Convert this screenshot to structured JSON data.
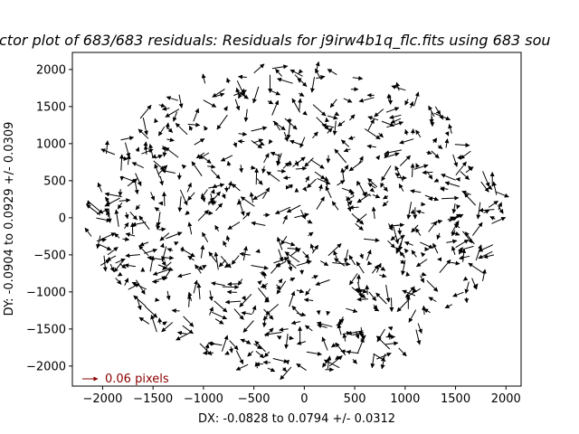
{
  "chart_data": {
    "type": "quiver",
    "title": "ctor plot of 683/683 residuals:  Residuals for j9irw4b1q_flc.fits using 683 sou",
    "xlabel": "DX: -0.0828 to 0.0794 +/- 0.0312",
    "ylabel": "DY: -0.0904 to 0.0929 +/- 0.0309",
    "xlim": [
      -2300,
      2150
    ],
    "ylim": [
      -2270,
      2230
    ],
    "xticks": [
      -2000,
      -1500,
      -1000,
      -500,
      0,
      500,
      1000,
      1500,
      2000
    ],
    "yticks": [
      -2000,
      -1500,
      -1000,
      -500,
      0,
      500,
      1000,
      1500,
      2000
    ],
    "grid": false,
    "quiver_key": {
      "label": "0.06 pixels",
      "color": "#8b0000"
    },
    "vector_count": 683,
    "vectors_sample": [
      {
        "x": -2150,
        "y": 230,
        "dx": 0.06,
        "dy": -0.05
      },
      {
        "x": -1950,
        "y": -500,
        "dx": 0.04,
        "dy": 0.03
      },
      {
        "x": -1820,
        "y": 1050,
        "dx": 0.05,
        "dy": 0.01
      },
      {
        "x": -1430,
        "y": 80,
        "dx": -0.01,
        "dy": -0.07
      },
      {
        "x": -1200,
        "y": -1330,
        "dx": 0.04,
        "dy": -0.04
      },
      {
        "x": -1100,
        "y": 1300,
        "dx": 0.02,
        "dy": 0.05
      },
      {
        "x": -870,
        "y": -600,
        "dx": -0.03,
        "dy": 0.04
      },
      {
        "x": -700,
        "y": 1650,
        "dx": 0.05,
        "dy": 0.02
      },
      {
        "x": -500,
        "y": -1700,
        "dx": 0.03,
        "dy": -0.02
      },
      {
        "x": -380,
        "y": 350,
        "dx": -0.05,
        "dy": -0.03
      },
      {
        "x": -150,
        "y": -1200,
        "dx": 0.02,
        "dy": 0.06
      },
      {
        "x": 100,
        "y": 1900,
        "dx": -0.01,
        "dy": -0.06
      },
      {
        "x": 250,
        "y": -2000,
        "dx": 0.05,
        "dy": 0.04
      },
      {
        "x": 400,
        "y": -650,
        "dx": -0.04,
        "dy": 0.03
      },
      {
        "x": 600,
        "y": 1200,
        "dx": 0.06,
        "dy": -0.04
      },
      {
        "x": 800,
        "y": -1500,
        "dx": -0.03,
        "dy": -0.05
      },
      {
        "x": 950,
        "y": 700,
        "dx": 0.04,
        "dy": 0.04
      },
      {
        "x": 1100,
        "y": -1050,
        "dx": -0.05,
        "dy": 0.02
      },
      {
        "x": 1300,
        "y": 1500,
        "dx": 0.03,
        "dy": -0.05
      },
      {
        "x": 1500,
        "y": -400,
        "dx": 0.05,
        "dy": 0.03
      },
      {
        "x": 1650,
        "y": 900,
        "dx": -0.04,
        "dy": -0.03
      },
      {
        "x": 1780,
        "y": -750,
        "dx": -0.06,
        "dy": 0.04
      },
      {
        "x": 1900,
        "y": 350,
        "dx": 0.05,
        "dy": -0.02
      },
      {
        "x": 1880,
        "y": -500,
        "dx": -0.04,
        "dy": -0.01
      }
    ]
  }
}
